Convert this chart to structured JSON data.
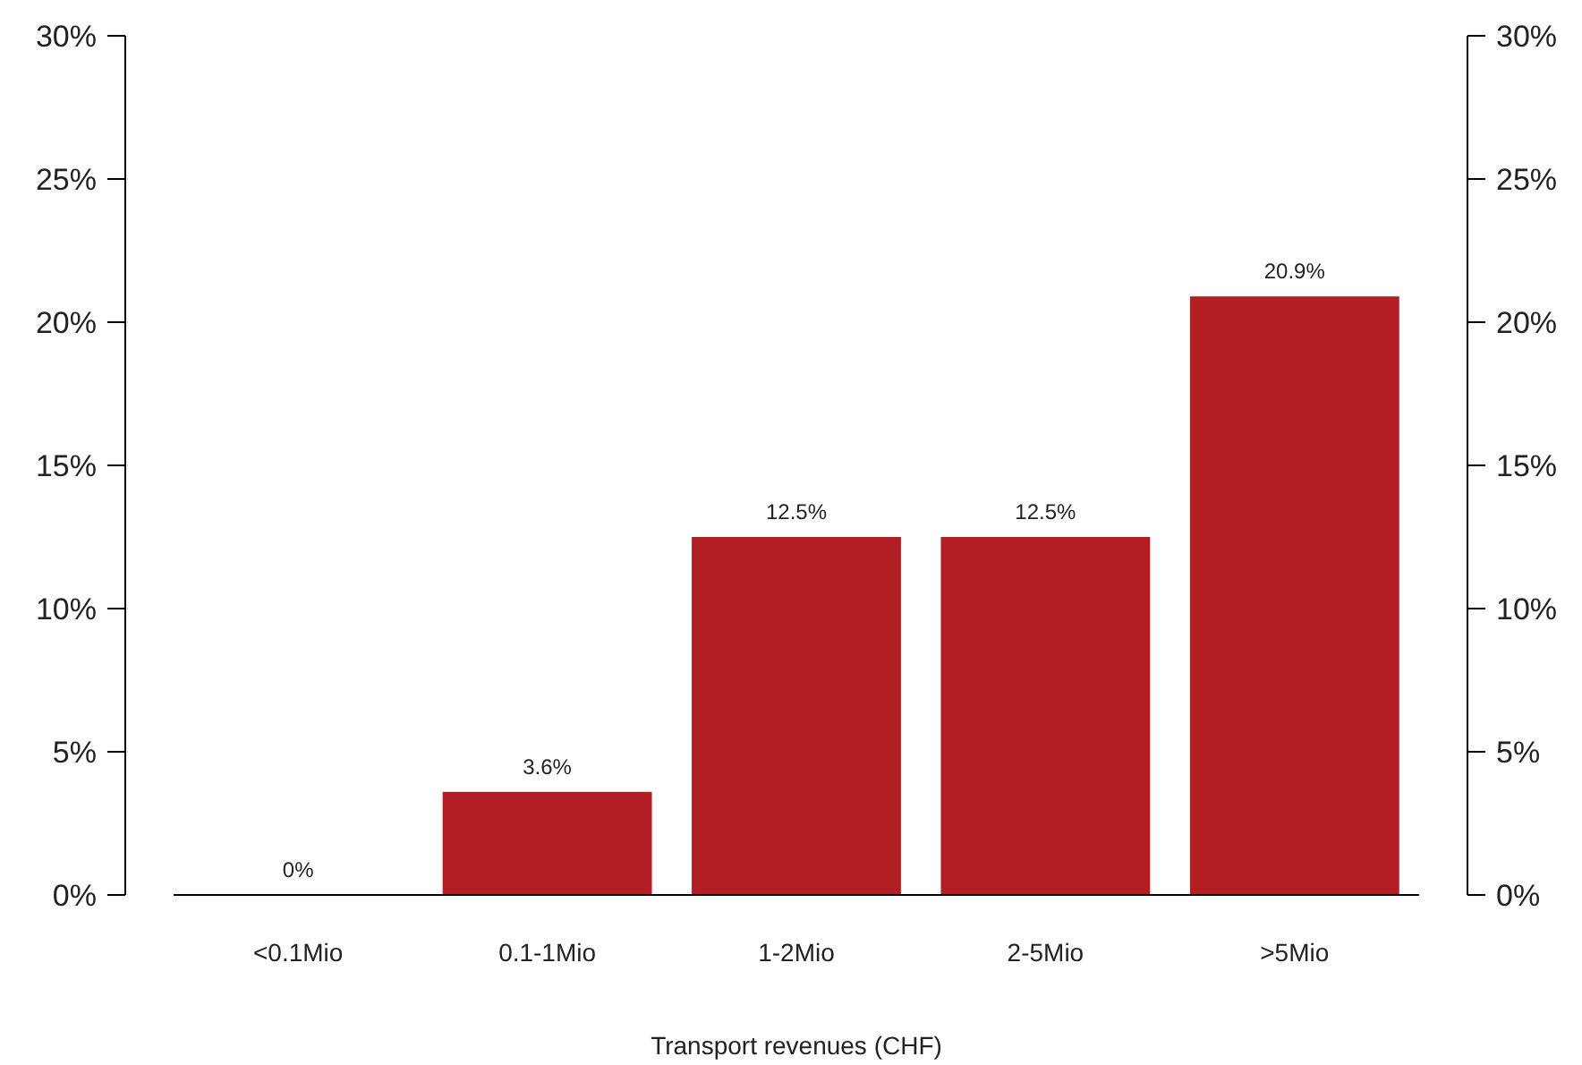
{
  "chart_data": {
    "type": "bar",
    "xlabel": "Transport revenues (CHF)",
    "categories": [
      "<0.1Mio",
      "0.1-1Mio",
      "1-2Mio",
      "2-5Mio",
      ">5Mio"
    ],
    "values": [
      0,
      3.6,
      12.5,
      12.5,
      20.9
    ],
    "value_labels": [
      "0%",
      "3.6%",
      "12.5%",
      "12.5%",
      "20.9%"
    ],
    "color": "#b31e24",
    "ylim": [
      0,
      30
    ],
    "yticks": [
      {
        "value": 0,
        "label": "0%"
      },
      {
        "value": 5,
        "label": "5%"
      },
      {
        "value": 10,
        "label": "10%"
      },
      {
        "value": 15,
        "label": "15%"
      },
      {
        "value": 20,
        "label": "20%"
      },
      {
        "value": 25,
        "label": "25%"
      },
      {
        "value": 30,
        "label": "30%"
      }
    ],
    "y2lim": [
      0,
      30
    ],
    "y2ticks": [
      {
        "value": 0,
        "label": "0%"
      },
      {
        "value": 5,
        "label": "5%"
      },
      {
        "value": 10,
        "label": "10%"
      },
      {
        "value": 15,
        "label": "15%"
      },
      {
        "value": 20,
        "label": "20%"
      },
      {
        "value": 25,
        "label": "25%"
      },
      {
        "value": 30,
        "label": "30%"
      }
    ],
    "grid": false
  }
}
